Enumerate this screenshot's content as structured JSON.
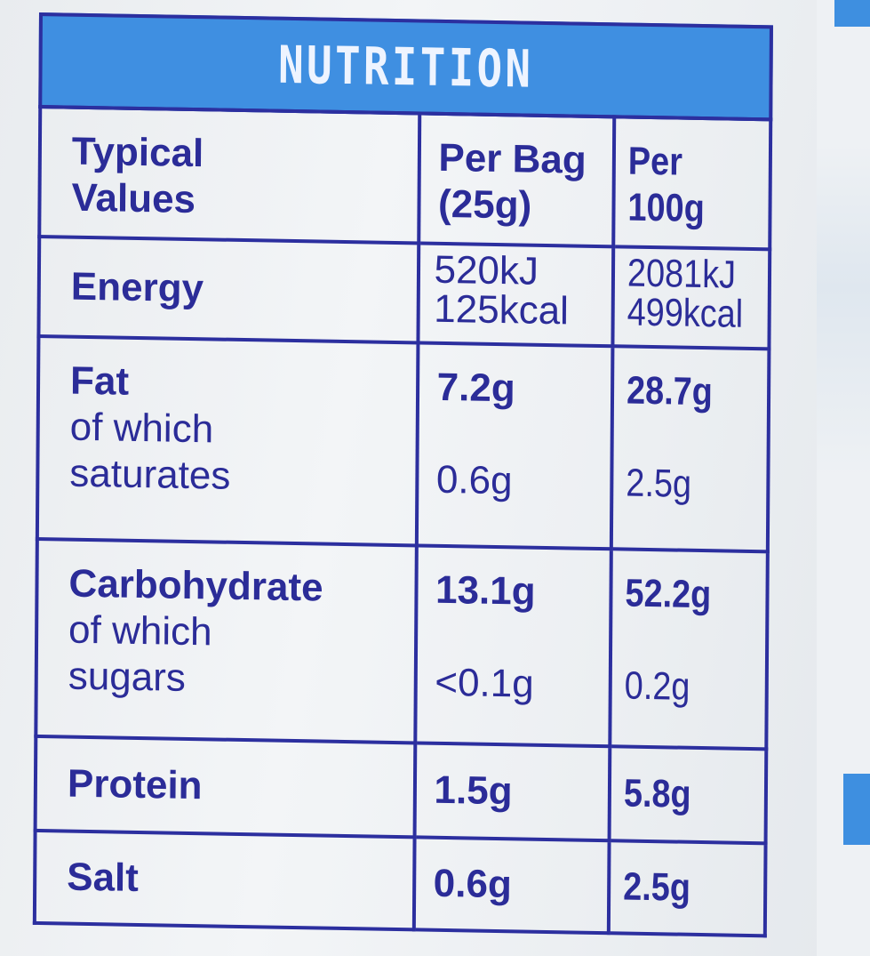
{
  "title": "NUTRITION",
  "header": {
    "col1": [
      "Typical",
      "Values"
    ],
    "col2": [
      "Per Bag",
      "(25g)"
    ],
    "col3": [
      "Per",
      "100g"
    ]
  },
  "rows": {
    "energy": {
      "label": "Energy",
      "per_bag": [
        "520kJ",
        "125kcal"
      ],
      "per_100g": [
        "2081kJ",
        "499kcal"
      ]
    },
    "fat": {
      "label": "Fat",
      "sub": [
        "of which",
        "saturates"
      ],
      "per_bag": "7.2g",
      "per_bag_sub": "0.6g",
      "per_100g": "28.7g",
      "per_100g_sub": "2.5g"
    },
    "carbohydrate": {
      "label": "Carbohydrate",
      "sub": [
        "of which",
        "sugars"
      ],
      "per_bag": "13.1g",
      "per_bag_sub": "<0.1g",
      "per_100g": "52.2g",
      "per_100g_sub": "0.2g"
    },
    "protein": {
      "label": "Protein",
      "per_bag": "1.5g",
      "per_100g": "5.8g"
    },
    "salt": {
      "label": "Salt",
      "per_bag": "0.6g",
      "per_100g": "2.5g"
    }
  },
  "colors": {
    "ink": "#2b2c98",
    "header_bg": "#3f8fe1",
    "header_text": "#eef4ff"
  }
}
